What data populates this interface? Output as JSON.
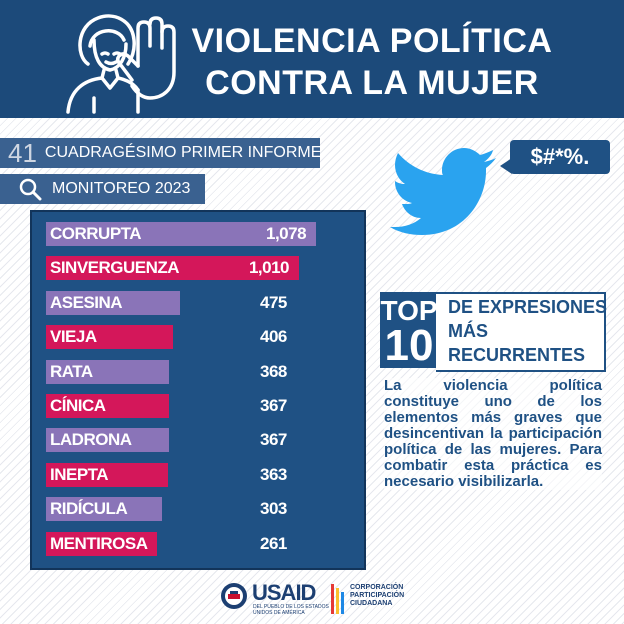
{
  "header": {
    "title_line1": "VIOLENCIA POLÍTICA",
    "title_line2": "CONTRA LA MUJER"
  },
  "report": {
    "number": "41",
    "label": "CUADRAGÉSIMO PRIMER INFORME"
  },
  "monitor": {
    "label": "MONITOREO 2023"
  },
  "tweet": {
    "bubble_text": "$#*%."
  },
  "top10": {
    "top_word": "TOP",
    "ten_word": "10",
    "line1": "DE EXPRESIONES",
    "line2": "MÁS",
    "line3": "RECURRENTES"
  },
  "description": "La violencia política constituye uno de los elementos más graves que desincentivan la participación política de las mujeres. Para combatir esta práctica es necesario visibilizarla.",
  "logos": {
    "usaid_name": "USAID",
    "usaid_sub": "DEL PUEBLO DE LOS ESTADOS UNIDOS DE AMÉRICA",
    "cpc_line1": "CORPORACIÓN",
    "cpc_line2": "PARTICIPACIÓN",
    "cpc_line3": "CIUDADANA"
  },
  "colors": {
    "navy": "#1c4a7a",
    "panel": "#1f5184",
    "purple": "#8a74b8",
    "magenta": "#d4175a"
  },
  "chart_data": {
    "type": "bar",
    "orientation": "horizontal",
    "title": "TOP 10 DE EXPRESIONES MÁS RECURRENTES",
    "categories": [
      "CORRUPTA",
      "SINVERGUENZA",
      "ASESINA",
      "VIEJA",
      "RATA",
      "CÍNICA",
      "LADRONA",
      "INEPTA",
      "RIDÍCULA",
      "MENTIROSA"
    ],
    "values": [
      1078,
      1010,
      475,
      406,
      368,
      367,
      367,
      363,
      303,
      261
    ],
    "value_labels": [
      "1,078",
      "1,010",
      "475",
      "406",
      "368",
      "367",
      "367",
      "363",
      "303",
      "261"
    ],
    "bar_colors": [
      "#8a74b8",
      "#d4175a",
      "#8a74b8",
      "#d4175a",
      "#8a74b8",
      "#d4175a",
      "#8a74b8",
      "#d4175a",
      "#8a74b8",
      "#d4175a"
    ]
  }
}
